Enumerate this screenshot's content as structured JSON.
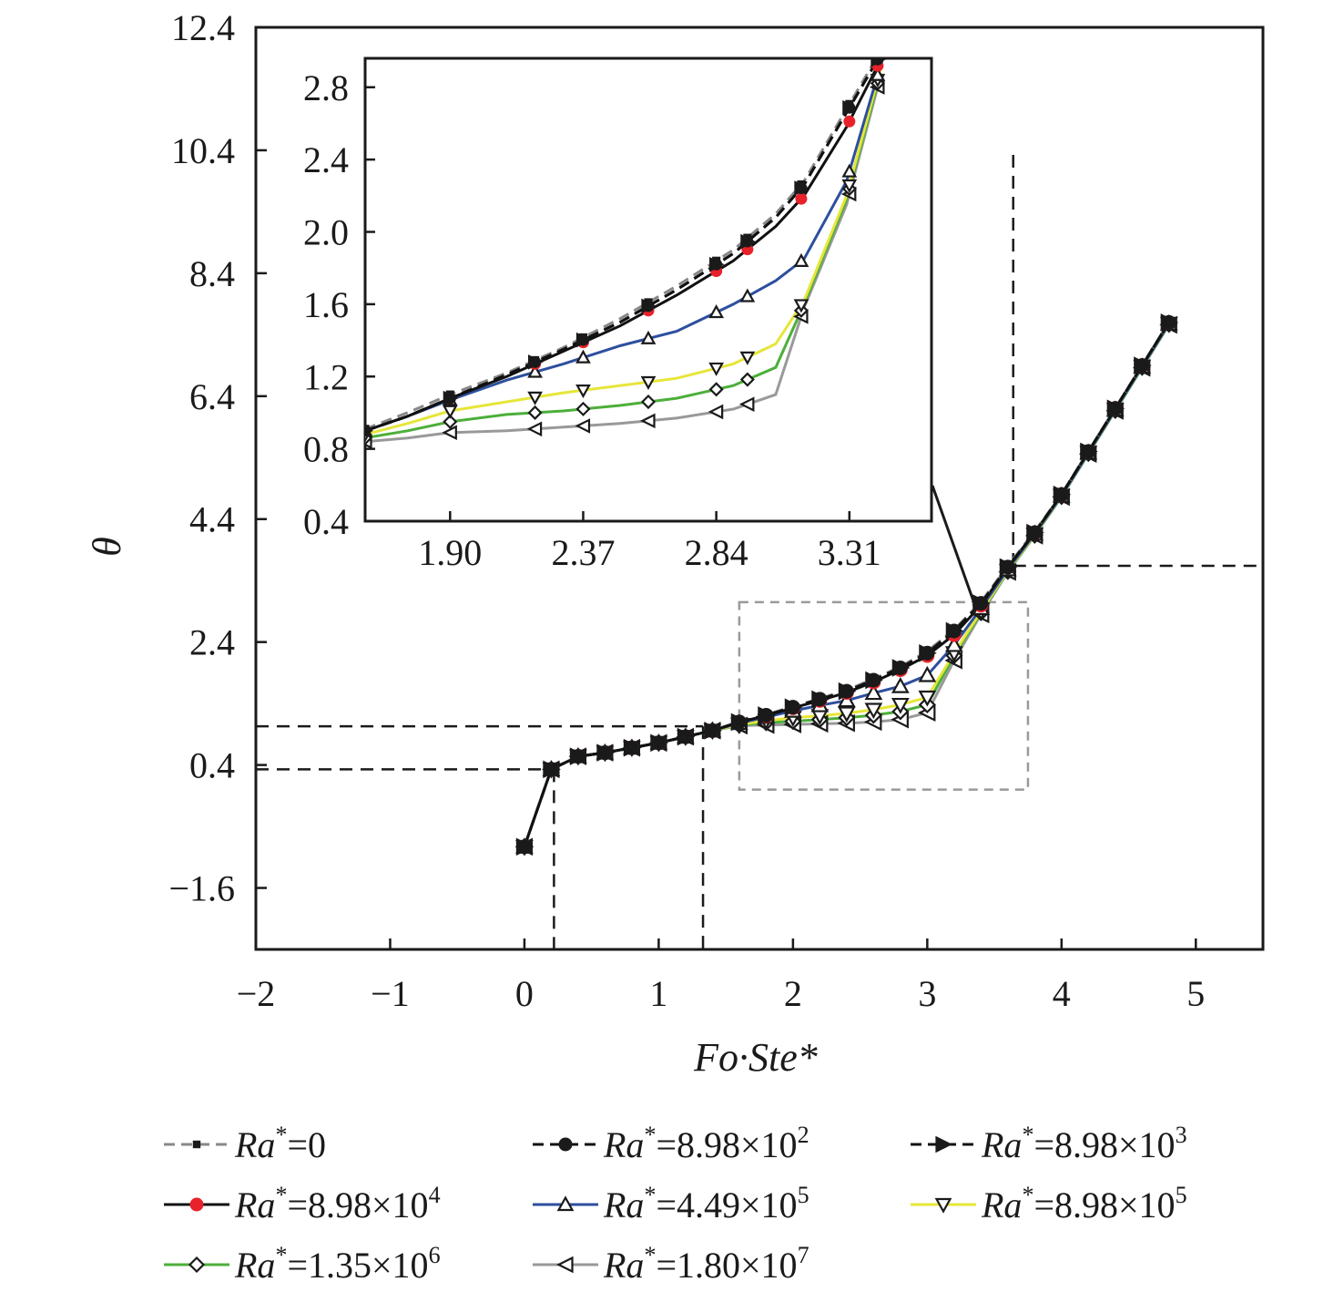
{
  "chart_data": {
    "type": "line",
    "xlabel": "Fo·Ste*",
    "ylabel": "θ",
    "xlim": [
      -2,
      5.5
    ],
    "ylim": [
      -2.6,
      12.4
    ],
    "x_ticks": [
      -2,
      -1,
      0,
      1,
      2,
      3,
      4,
      5
    ],
    "x_tick_labels": [
      "−2",
      "−1",
      "0",
      "1",
      "2",
      "3",
      "4",
      "5"
    ],
    "y_ticks": [
      -1.6,
      0.4,
      2.4,
      4.4,
      6.4,
      8.4,
      10.4,
      12.4
    ],
    "y_tick_labels": [
      "−1.6",
      "0.4",
      "2.4",
      "4.4",
      "6.4",
      "8.4",
      "10.4",
      "12.4"
    ],
    "grid": false,
    "legend_position": "bottom",
    "series": [
      {
        "name": "Ra*=0",
        "base": "Ra",
        "sup": "*",
        "mant": "=0",
        "exp": "",
        "color": "#888888",
        "dash": true,
        "marker": "square",
        "x": [
          0,
          0.2,
          0.4,
          0.6,
          0.8,
          1.0,
          1.2,
          1.4,
          1.6,
          1.8,
          2.0,
          2.2,
          2.4,
          2.6,
          2.8,
          3.0,
          3.2,
          3.4,
          3.6,
          3.8,
          4.0,
          4.2,
          4.4,
          4.6,
          4.8
        ],
        "y": [
          -0.93,
          0.33,
          0.54,
          0.6,
          0.68,
          0.76,
          0.86,
          0.96,
          1.1,
          1.22,
          1.35,
          1.48,
          1.62,
          1.8,
          2.0,
          2.25,
          2.6,
          3.05,
          3.64,
          4.2,
          4.8,
          5.5,
          6.2,
          6.9,
          7.6
        ]
      },
      {
        "name": "Ra*=8.98×10²",
        "base": "Ra",
        "sup": "*",
        "mant": "=8.98×10",
        "exp": "2",
        "color": "#111111",
        "dash": true,
        "marker": "circle",
        "x": [
          0,
          0.2,
          0.4,
          0.6,
          0.8,
          1.0,
          1.2,
          1.4,
          1.6,
          1.8,
          2.0,
          2.2,
          2.4,
          2.6,
          2.8,
          3.0,
          3.2,
          3.4,
          3.6,
          3.8,
          4.0,
          4.2,
          4.4,
          4.6,
          4.8
        ],
        "y": [
          -0.93,
          0.33,
          0.54,
          0.6,
          0.68,
          0.76,
          0.86,
          0.96,
          1.1,
          1.21,
          1.34,
          1.47,
          1.6,
          1.78,
          1.98,
          2.22,
          2.58,
          3.03,
          3.62,
          4.18,
          4.8,
          5.5,
          6.2,
          6.9,
          7.6
        ]
      },
      {
        "name": "Ra*=8.98×10³",
        "base": "Ra",
        "sup": "*",
        "mant": "=8.98×10",
        "exp": "3",
        "color": "#111111",
        "dash": true,
        "marker": "tri-right",
        "x": [
          0,
          0.2,
          0.4,
          0.6,
          0.8,
          1.0,
          1.2,
          1.4,
          1.6,
          1.8,
          2.0,
          2.2,
          2.4,
          2.6,
          2.8,
          3.0,
          3.2,
          3.4,
          3.6,
          3.8,
          4.0,
          4.2,
          4.4,
          4.6,
          4.8
        ],
        "y": [
          -0.93,
          0.33,
          0.54,
          0.6,
          0.68,
          0.76,
          0.86,
          0.96,
          1.1,
          1.21,
          1.34,
          1.47,
          1.6,
          1.78,
          1.98,
          2.22,
          2.58,
          3.03,
          3.62,
          4.18,
          4.8,
          5.5,
          6.2,
          6.9,
          7.6
        ]
      },
      {
        "name": "Ra*=8.98×10⁴",
        "base": "Ra",
        "sup": "*",
        "mant": "=8.98×10",
        "exp": "4",
        "color": "#111111",
        "dash": false,
        "marker": "circle-red",
        "x": [
          0,
          0.2,
          0.4,
          0.6,
          0.8,
          1.0,
          1.2,
          1.4,
          1.6,
          1.8,
          2.0,
          2.2,
          2.4,
          2.6,
          2.8,
          3.0,
          3.2,
          3.4,
          3.6,
          3.8,
          4.0,
          4.2,
          4.4,
          4.6,
          4.8
        ],
        "y": [
          -0.93,
          0.33,
          0.54,
          0.6,
          0.68,
          0.76,
          0.86,
          0.96,
          1.1,
          1.2,
          1.33,
          1.45,
          1.58,
          1.75,
          1.95,
          2.18,
          2.52,
          3.0,
          3.62,
          4.18,
          4.8,
          5.5,
          6.2,
          6.9,
          7.6
        ]
      },
      {
        "name": "Ra*=4.49×10⁵",
        "base": "Ra",
        "sup": "*",
        "mant": "=4.49×10",
        "exp": "5",
        "color": "#2d4f9e",
        "dash": false,
        "marker": "tri-up",
        "x": [
          0,
          0.2,
          0.4,
          0.6,
          0.8,
          1.0,
          1.2,
          1.4,
          1.6,
          1.8,
          2.0,
          2.2,
          2.4,
          2.6,
          2.8,
          3.0,
          3.2,
          3.4,
          3.6,
          3.8,
          4.0,
          4.2,
          4.4,
          4.6,
          4.8
        ],
        "y": [
          -0.93,
          0.33,
          0.54,
          0.6,
          0.68,
          0.76,
          0.86,
          0.96,
          1.08,
          1.18,
          1.28,
          1.37,
          1.45,
          1.57,
          1.68,
          1.86,
          2.35,
          2.95,
          3.58,
          4.16,
          4.78,
          5.48,
          6.18,
          6.88,
          7.58
        ]
      },
      {
        "name": "Ra*=8.98×10⁵",
        "base": "Ra",
        "sup": "*",
        "mant": "=8.98×10",
        "exp": "5",
        "color": "#e6e63a",
        "dash": false,
        "marker": "tri-down",
        "x": [
          0,
          0.2,
          0.4,
          0.6,
          0.8,
          1.0,
          1.2,
          1.4,
          1.6,
          1.8,
          2.0,
          2.2,
          2.4,
          2.6,
          2.8,
          3.0,
          3.2,
          3.4,
          3.6,
          3.8,
          4.0,
          4.2,
          4.4,
          4.6,
          4.8
        ],
        "y": [
          -0.93,
          0.33,
          0.54,
          0.6,
          0.68,
          0.76,
          0.86,
          0.96,
          1.06,
          1.12,
          1.17,
          1.2,
          1.24,
          1.3,
          1.38,
          1.5,
          2.22,
          2.9,
          3.56,
          4.15,
          4.78,
          5.48,
          6.18,
          6.88,
          7.58
        ]
      },
      {
        "name": "Ra*=1.35×10⁶",
        "base": "Ra",
        "sup": "*",
        "mant": "=1.35×10",
        "exp": "6",
        "color": "#4caf3a",
        "dash": false,
        "marker": "diamond",
        "x": [
          0,
          0.2,
          0.4,
          0.6,
          0.8,
          1.0,
          1.2,
          1.4,
          1.6,
          1.8,
          2.0,
          2.2,
          2.4,
          2.6,
          2.8,
          3.0,
          3.2,
          3.4,
          3.6,
          3.8,
          4.0,
          4.2,
          4.4,
          4.6,
          4.8
        ],
        "y": [
          -0.93,
          0.33,
          0.54,
          0.6,
          0.68,
          0.76,
          0.86,
          0.96,
          1.05,
          1.09,
          1.11,
          1.14,
          1.17,
          1.21,
          1.27,
          1.38,
          2.18,
          2.88,
          3.55,
          4.14,
          4.77,
          5.47,
          6.17,
          6.87,
          7.57
        ]
      },
      {
        "name": "Ra*=1.80×10⁷",
        "base": "Ra",
        "sup": "*",
        "mant": "=1.80×10",
        "exp": "7",
        "color": "#999999",
        "dash": false,
        "marker": "tri-left",
        "x": [
          0,
          0.2,
          0.4,
          0.6,
          0.8,
          1.0,
          1.2,
          1.4,
          1.6,
          1.8,
          2.0,
          2.2,
          2.4,
          2.6,
          2.8,
          3.0,
          3.2,
          3.4,
          3.6,
          3.8,
          4.0,
          4.2,
          4.4,
          4.6,
          4.8
        ],
        "y": [
          -0.93,
          0.33,
          0.54,
          0.6,
          0.68,
          0.76,
          0.86,
          0.96,
          1.04,
          1.05,
          1.06,
          1.07,
          1.08,
          1.1,
          1.14,
          1.25,
          2.1,
          2.85,
          3.54,
          4.13,
          4.76,
          5.46,
          6.16,
          6.86,
          7.56
        ]
      }
    ],
    "reference_lines": [
      {
        "from": [
          -2,
          1.03
        ],
        "to": [
          1.33,
          1.03
        ]
      },
      {
        "from": [
          1.33,
          1.03
        ],
        "to": [
          1.33,
          -2.6
        ]
      },
      {
        "from": [
          -2,
          0.33
        ],
        "to": [
          0.22,
          0.33
        ]
      },
      {
        "from": [
          0.22,
          0.33
        ],
        "to": [
          0.22,
          -2.6
        ]
      },
      {
        "from": [
          3.64,
          3.64
        ],
        "to": [
          5.5,
          3.64
        ]
      },
      {
        "from": [
          3.64,
          3.64
        ],
        "to": [
          3.64,
          10.4
        ]
      }
    ],
    "zoom_box": {
      "x": [
        1.6,
        3.75
      ],
      "y": [
        0.0,
        3.05
      ]
    },
    "inset": {
      "xlim": [
        1.6,
        3.6
      ],
      "ylim": [
        0.4,
        2.96
      ],
      "x_ticks": [
        1.9,
        2.37,
        2.84,
        3.31
      ],
      "x_tick_labels": [
        "1.90",
        "2.37",
        "2.84",
        "3.31"
      ],
      "y_ticks": [
        0.4,
        0.8,
        1.2,
        1.6,
        2.0,
        2.4,
        2.8
      ],
      "y_tick_labels": [
        "0.4",
        "0.8",
        "1.2",
        "1.6",
        "2.0",
        "2.4",
        "2.8"
      ],
      "x": [
        1.6,
        1.75,
        1.9,
        2.1,
        2.3,
        2.5,
        2.7,
        2.9,
        3.05,
        3.15,
        3.3,
        3.42
      ],
      "series": [
        [
          0.91,
          1.0,
          1.1,
          1.22,
          1.36,
          1.52,
          1.7,
          1.9,
          2.1,
          2.28,
          2.68,
          3.0
        ],
        [
          0.9,
          0.98,
          1.08,
          1.21,
          1.35,
          1.5,
          1.68,
          1.88,
          2.08,
          2.26,
          2.66,
          2.98
        ],
        [
          0.9,
          0.98,
          1.08,
          1.21,
          1.35,
          1.5,
          1.68,
          1.88,
          2.08,
          2.26,
          2.66,
          2.98
        ],
        [
          0.9,
          0.98,
          1.08,
          1.2,
          1.34,
          1.48,
          1.65,
          1.84,
          2.03,
          2.2,
          2.58,
          2.95
        ],
        [
          0.9,
          0.98,
          1.07,
          1.18,
          1.27,
          1.37,
          1.45,
          1.6,
          1.73,
          1.85,
          2.28,
          2.92
        ],
        [
          0.88,
          0.94,
          1.01,
          1.06,
          1.11,
          1.15,
          1.19,
          1.27,
          1.38,
          1.62,
          2.2,
          2.9
        ],
        [
          0.86,
          0.9,
          0.95,
          0.99,
          1.01,
          1.04,
          1.08,
          1.15,
          1.25,
          1.6,
          2.18,
          2.88
        ],
        [
          0.84,
          0.86,
          0.89,
          0.9,
          0.92,
          0.94,
          0.97,
          1.02,
          1.1,
          1.58,
          2.15,
          2.86
        ]
      ],
      "marker_x": [
        1.6,
        1.9,
        2.2,
        2.37,
        2.6,
        2.84,
        2.95,
        3.14,
        3.31,
        3.41
      ]
    }
  }
}
